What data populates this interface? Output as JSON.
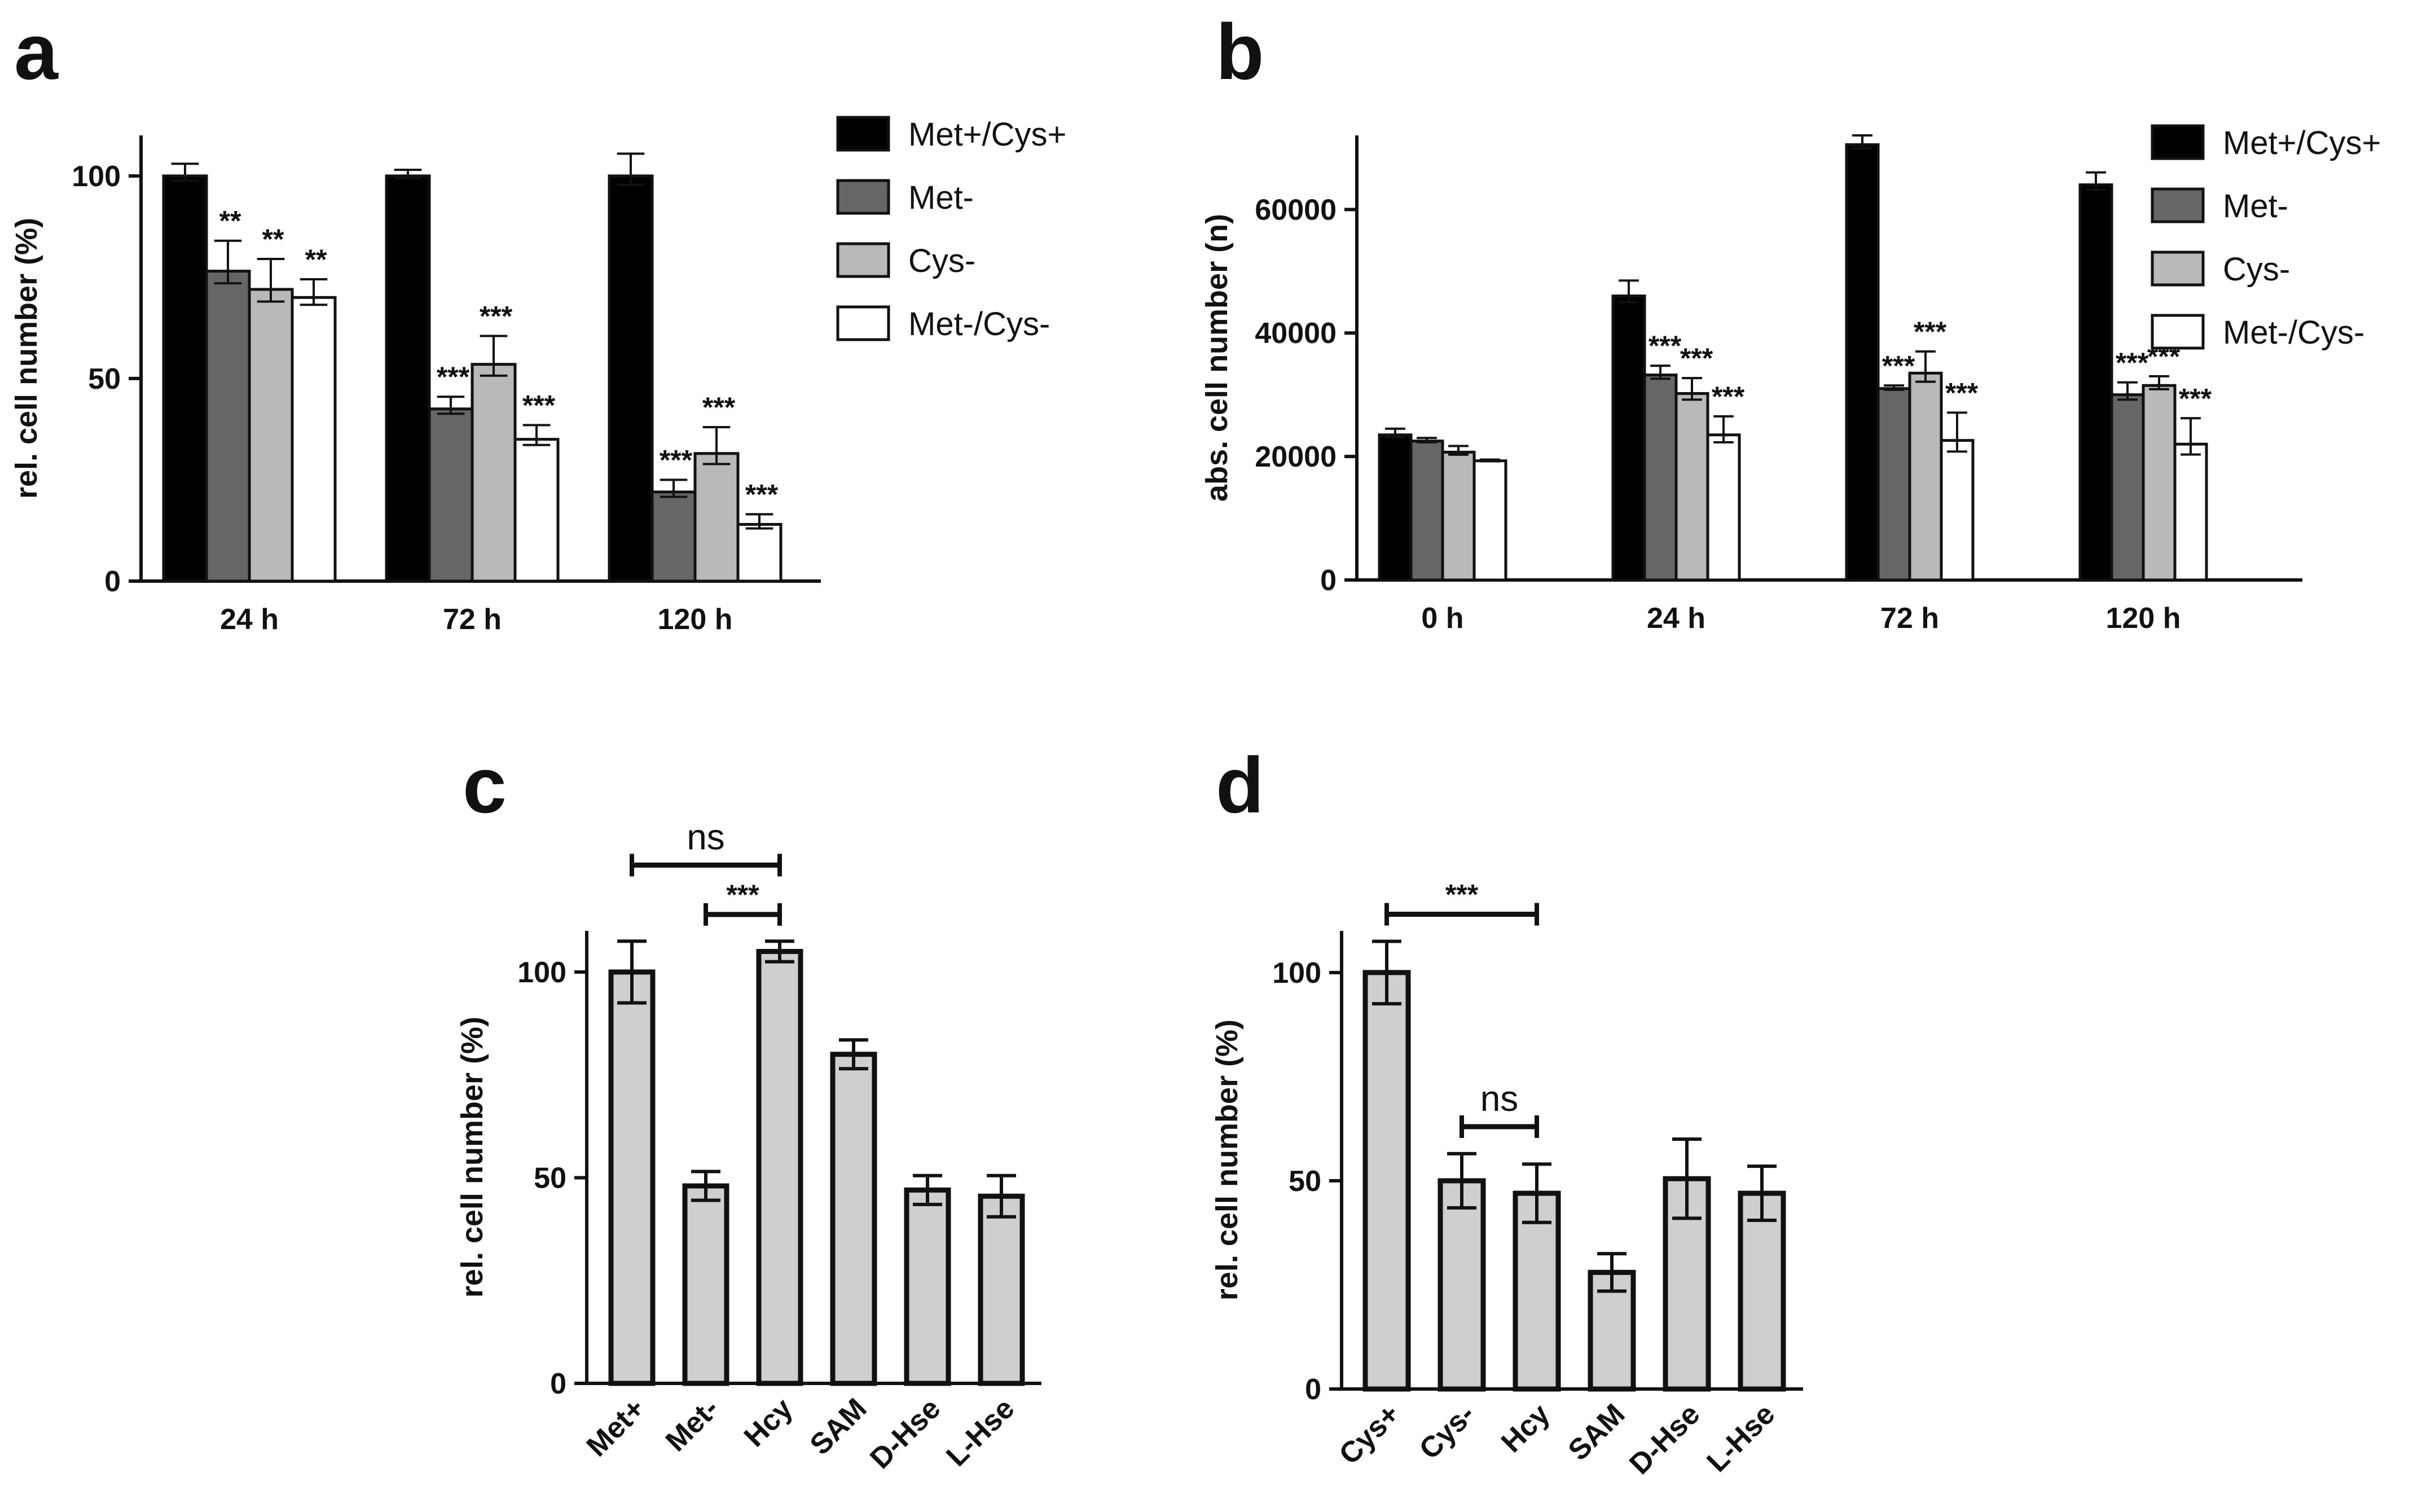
{
  "colors": {
    "met_cys_plus": "#000000",
    "met_minus": "#666666",
    "cys_minus": "#b9b9b9",
    "met_cys_minus": "#ffffff",
    "supplement": "#cfcfcf",
    "ink": "#111111"
  },
  "chart_data": [
    {
      "panel": "a",
      "type": "bar",
      "ylabel": "rel. cell number (%)",
      "ylim": [
        0,
        110
      ],
      "yticks": [
        0,
        50,
        100
      ],
      "categories": [
        "24 h",
        "72 h",
        "120 h"
      ],
      "legend": {
        "placement": "right"
      },
      "series": [
        {
          "name": "Met+/Cys+",
          "color_key": "met_cys_plus",
          "values": [
            100,
            100,
            100
          ],
          "errors": [
            3,
            1.5,
            5.5
          ],
          "sig": [
            "",
            "",
            ""
          ]
        },
        {
          "name": "Met-",
          "color_key": "met_minus",
          "values": [
            76.5,
            42.5,
            22
          ],
          "errors": [
            7.5,
            3,
            3
          ],
          "sig": [
            "**",
            "***",
            "***"
          ]
        },
        {
          "name": "Cys-",
          "color_key": "cys_minus",
          "values": [
            72,
            53.5,
            31.5
          ],
          "errors": [
            7.5,
            7,
            6.5
          ],
          "sig": [
            "**",
            "***",
            "***"
          ]
        },
        {
          "name": "Met-/Cys-",
          "color_key": "met_cys_minus",
          "values": [
            70,
            35,
            14
          ],
          "errors": [
            4.5,
            3.5,
            2.5
          ],
          "sig": [
            "**",
            "***",
            "***"
          ]
        }
      ]
    },
    {
      "panel": "b",
      "type": "bar",
      "ylabel": "abs. cell number (n)",
      "ylim": [
        0,
        72000
      ],
      "yticks": [
        0,
        20000,
        40000,
        60000
      ],
      "categories": [
        "0 h",
        "24 h",
        "72 h",
        "120 h"
      ],
      "legend": {
        "placement": "right"
      },
      "series": [
        {
          "name": "Met+/Cys+",
          "color_key": "met_cys_plus",
          "values": [
            23500,
            46000,
            70500,
            64000
          ],
          "errors": [
            1000,
            2500,
            1500,
            2000
          ],
          "sig": [
            "",
            "",
            "",
            ""
          ]
        },
        {
          "name": "Met-",
          "color_key": "met_minus",
          "values": [
            22500,
            33200,
            31000,
            30000
          ],
          "errors": [
            500,
            1500,
            500,
            2000
          ],
          "sig": [
            "",
            "***",
            "***",
            "***"
          ]
        },
        {
          "name": "Cys-",
          "color_key": "cys_minus",
          "values": [
            20700,
            30200,
            33500,
            31500
          ],
          "errors": [
            1000,
            2500,
            3500,
            1500
          ],
          "sig": [
            "",
            "***",
            "***",
            "***"
          ]
        },
        {
          "name": "Met-/Cys-",
          "color_key": "met_cys_minus",
          "values": [
            19300,
            23500,
            22600,
            22000
          ],
          "errors": [
            200,
            3000,
            4500,
            4200
          ],
          "sig": [
            "",
            "***",
            "***",
            "***"
          ]
        }
      ]
    },
    {
      "panel": "c",
      "type": "bar",
      "ylabel": "rel. cell number (%)",
      "ylim": [
        0,
        110
      ],
      "yticks": [
        0,
        50,
        100
      ],
      "categories": [
        "Met+",
        "Met-",
        "Hcy",
        "SAM",
        "D-Hse",
        "L-Hse"
      ],
      "values": [
        100,
        48,
        105,
        80,
        47,
        45.5
      ],
      "errors": [
        7.5,
        3.5,
        2.5,
        3.5,
        3.5,
        5
      ],
      "comparisons": [
        {
          "from": 0,
          "to": 2,
          "label": "ns",
          "y": 126
        },
        {
          "from": 1,
          "to": 2,
          "label": "***",
          "y": 114
        }
      ]
    },
    {
      "panel": "d",
      "type": "bar",
      "ylabel": "rel. cell number (%)",
      "ylim": [
        0,
        110
      ],
      "yticks": [
        0,
        50,
        100
      ],
      "categories": [
        "Cys+",
        "Cys-",
        "Hcy",
        "SAM",
        "D-Hse",
        "L-Hse"
      ],
      "values": [
        100,
        50,
        47,
        28,
        50.5,
        47
      ],
      "errors": [
        7.5,
        6.5,
        7,
        4.5,
        9.5,
        6.5
      ],
      "comparisons": [
        {
          "from": 0,
          "to": 2,
          "label": "***",
          "y": 114
        },
        {
          "from": 1,
          "to": 2,
          "label": "ns",
          "y": 63
        }
      ]
    }
  ]
}
